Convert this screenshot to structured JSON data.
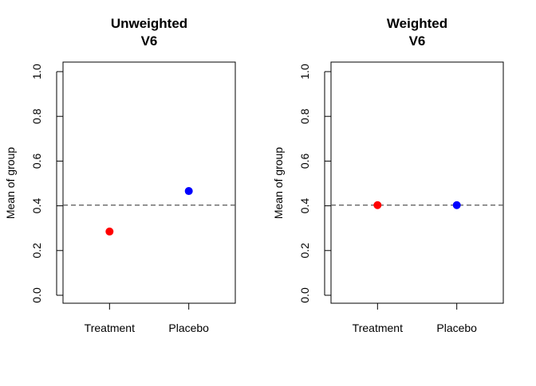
{
  "chart_data": [
    {
      "type": "scatter",
      "title": "Unweighted",
      "subtitle": "V6",
      "xlabel": "",
      "ylabel": "Mean of group",
      "categories": [
        "Treatment",
        "Placebo"
      ],
      "values": [
        0.285,
        0.466
      ],
      "point_colors": [
        "#ff0000",
        "#0000ff"
      ],
      "reference_line": 0.403,
      "ylim": [
        0.0,
        1.0
      ],
      "yticks": [
        "0.0",
        "0.2",
        "0.4",
        "0.6",
        "0.8",
        "1.0"
      ],
      "grid": false,
      "legend": "none"
    },
    {
      "type": "scatter",
      "title": "Weighted",
      "subtitle": "V6",
      "xlabel": "",
      "ylabel": "Mean of group",
      "categories": [
        "Treatment",
        "Placebo"
      ],
      "values": [
        0.403,
        0.403
      ],
      "point_colors": [
        "#ff0000",
        "#0000ff"
      ],
      "reference_line": 0.403,
      "ylim": [
        0.0,
        1.0
      ],
      "yticks": [
        "0.0",
        "0.2",
        "0.4",
        "0.6",
        "0.8",
        "1.0"
      ],
      "grid": false,
      "legend": "none"
    }
  ]
}
